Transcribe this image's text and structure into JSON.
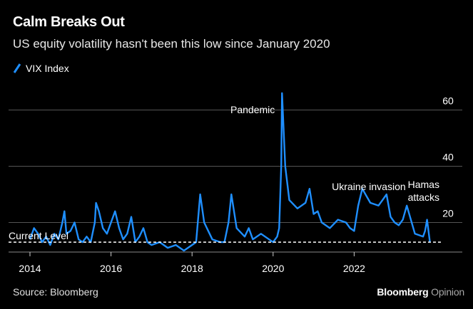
{
  "chart_data": {
    "type": "line",
    "title": "Calm Breaks Out",
    "subtitle": "US equity volatility hasn't been this low since January 2020",
    "series": [
      {
        "name": "VIX Index",
        "color": "#1f8fff",
        "x": [
          2014.0,
          2014.1,
          2014.2,
          2014.3,
          2014.4,
          2014.5,
          2014.6,
          2014.7,
          2014.8,
          2014.85,
          2014.9,
          2015.0,
          2015.1,
          2015.2,
          2015.3,
          2015.4,
          2015.5,
          2015.6,
          2015.63,
          2015.7,
          2015.8,
          2015.9,
          2016.0,
          2016.1,
          2016.2,
          2016.3,
          2016.4,
          2016.5,
          2016.6,
          2016.7,
          2016.8,
          2016.9,
          2017.0,
          2017.2,
          2017.4,
          2017.6,
          2017.8,
          2018.0,
          2018.1,
          2018.2,
          2018.3,
          2018.5,
          2018.7,
          2018.8,
          2018.9,
          2018.97,
          2019.1,
          2019.3,
          2019.4,
          2019.5,
          2019.7,
          2019.9,
          2020.0,
          2020.1,
          2020.15,
          2020.2,
          2020.22,
          2020.3,
          2020.4,
          2020.6,
          2020.8,
          2020.9,
          2021.0,
          2021.1,
          2021.2,
          2021.4,
          2021.6,
          2021.8,
          2021.9,
          2022.0,
          2022.1,
          2022.2,
          2022.4,
          2022.6,
          2022.7,
          2022.8,
          2022.9,
          2023.0,
          2023.1,
          2023.2,
          2023.3,
          2023.5,
          2023.7,
          2023.75,
          2023.8,
          2023.87
        ],
        "values": [
          14,
          18,
          16,
          13,
          15,
          12,
          16,
          14,
          20,
          24,
          16,
          17,
          20,
          14,
          13,
          15,
          13,
          20,
          27,
          24,
          18,
          16,
          20,
          24,
          18,
          14,
          16,
          22,
          13,
          15,
          18,
          13,
          12,
          13,
          11,
          12,
          10,
          12,
          13,
          30,
          20,
          14,
          13,
          13,
          20,
          30,
          18,
          15,
          18,
          14,
          16,
          14,
          13,
          15,
          18,
          40,
          66,
          40,
          28,
          25,
          27,
          32,
          23,
          24,
          20,
          18,
          21,
          20,
          18,
          17,
          26,
          32,
          27,
          26,
          28,
          30,
          22,
          20,
          19,
          21,
          26,
          16,
          15,
          17,
          21,
          13
        ]
      }
    ],
    "current_level": 13,
    "current_level_label": "Current Level",
    "annotations": [
      {
        "text": "Pandemic",
        "x": 2020.22,
        "y": 66
      },
      {
        "text": "Ukraine invasion",
        "x": 2022.15,
        "y": 32
      },
      {
        "text": "Hamas",
        "x": 2023.75,
        "y": 21
      },
      {
        "text": "attacks",
        "x": 2023.75,
        "y": 21
      }
    ],
    "xticks": [
      "2014",
      "2016",
      "2018",
      "2020",
      "2022"
    ],
    "yticks": [
      "20",
      "40",
      "60"
    ],
    "xlim": [
      2014,
      2024
    ],
    "ylim": [
      10,
      70
    ],
    "grid": true
  },
  "source": "Source: Bloomberg",
  "brand": {
    "name": "Bloomberg",
    "suffix": "Opinion"
  }
}
